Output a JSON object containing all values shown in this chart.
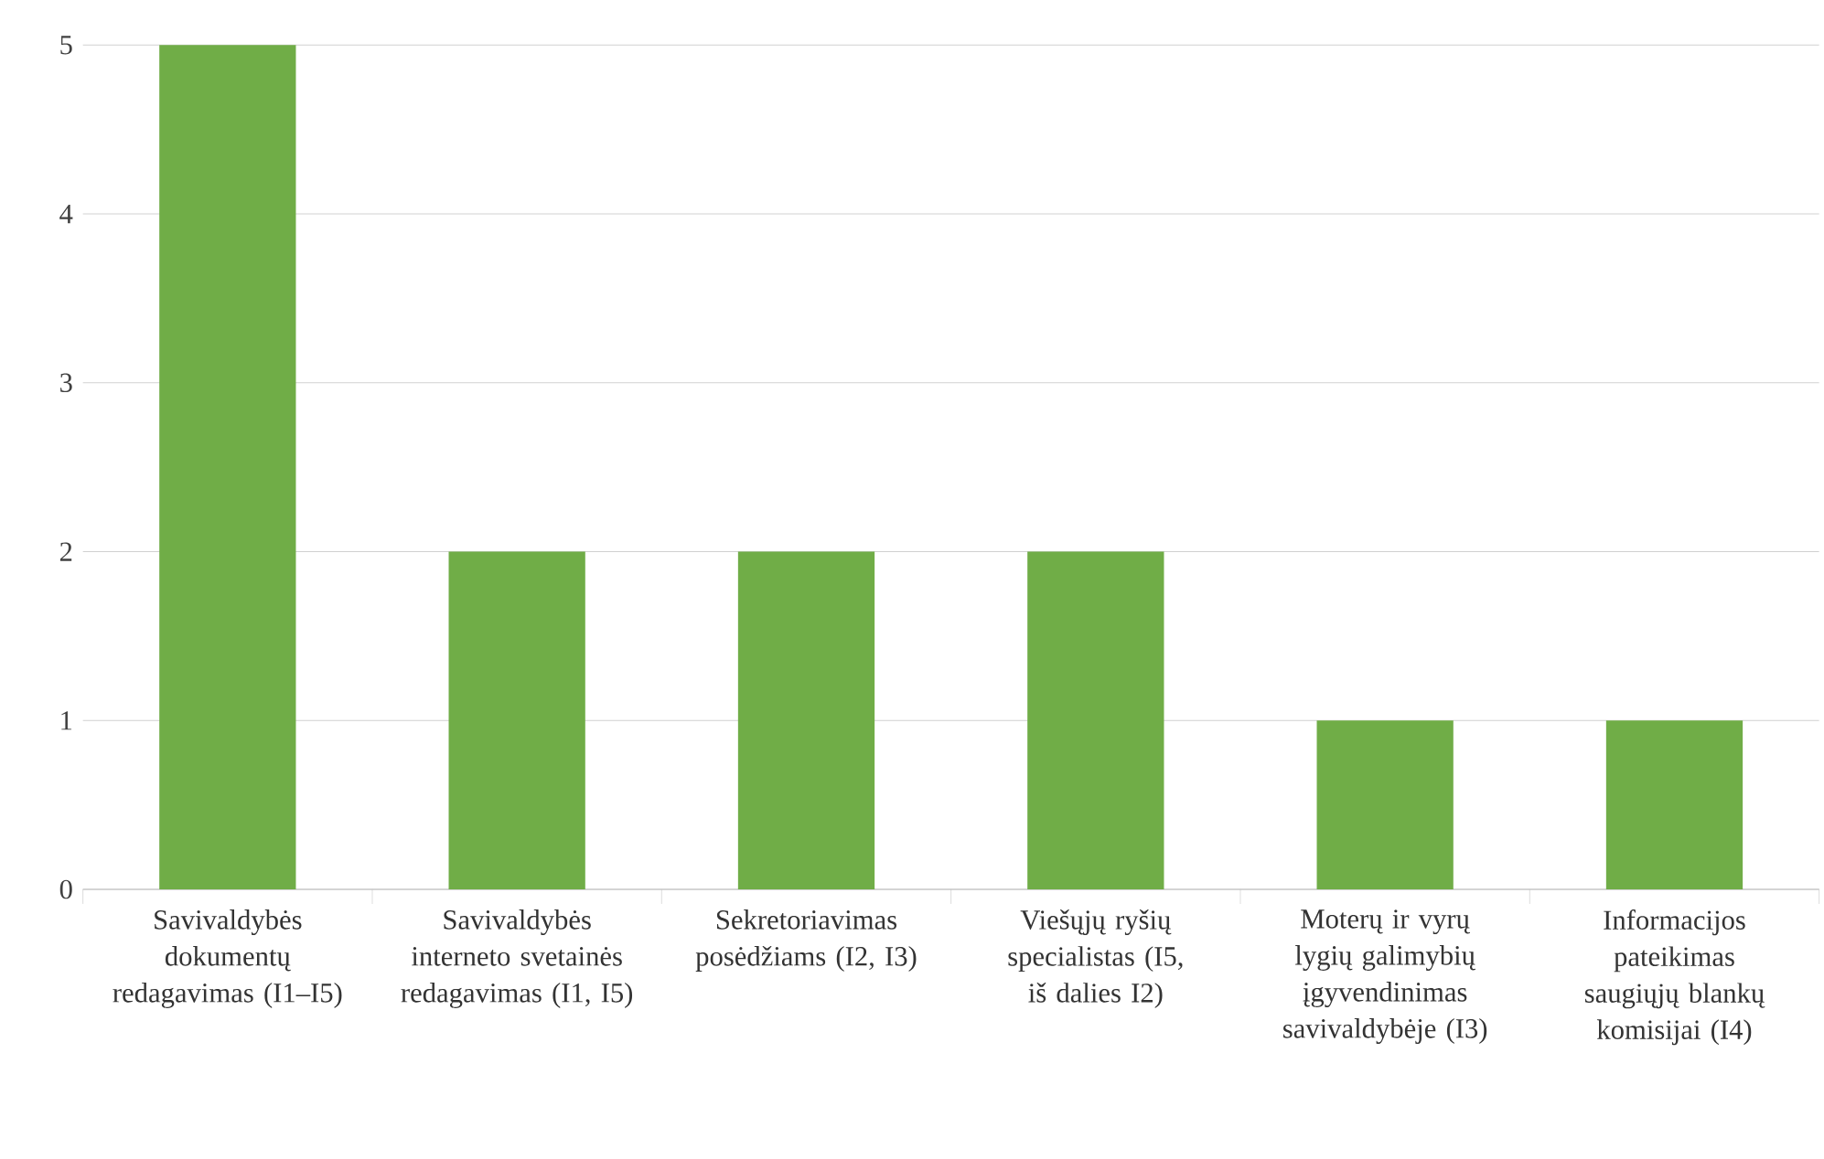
{
  "chart_data": {
    "type": "bar",
    "categories": [
      "Savivaldybės dokumentų redagavimas (I1–I5)",
      "Savivaldybės interneto svetainės redagavimas (I1, I5)",
      "Sekretoriavimas posėdžiams (I2, I3)",
      "Viešųjų ryšių specialistas (I5, iš dalies I2)",
      "Moterų ir vyrų lygių galimybių įgyvendinimas savivaldybėje (I3)",
      "Informacijos pateikimas saugiųjų blankų komisijai (I4)"
    ],
    "values": [
      5,
      2,
      2,
      2,
      1,
      1
    ],
    "color": "#70ad47",
    "ylim": [
      0,
      5
    ],
    "yticks": [
      0,
      1,
      2,
      3,
      4,
      5
    ],
    "grid": "y"
  }
}
